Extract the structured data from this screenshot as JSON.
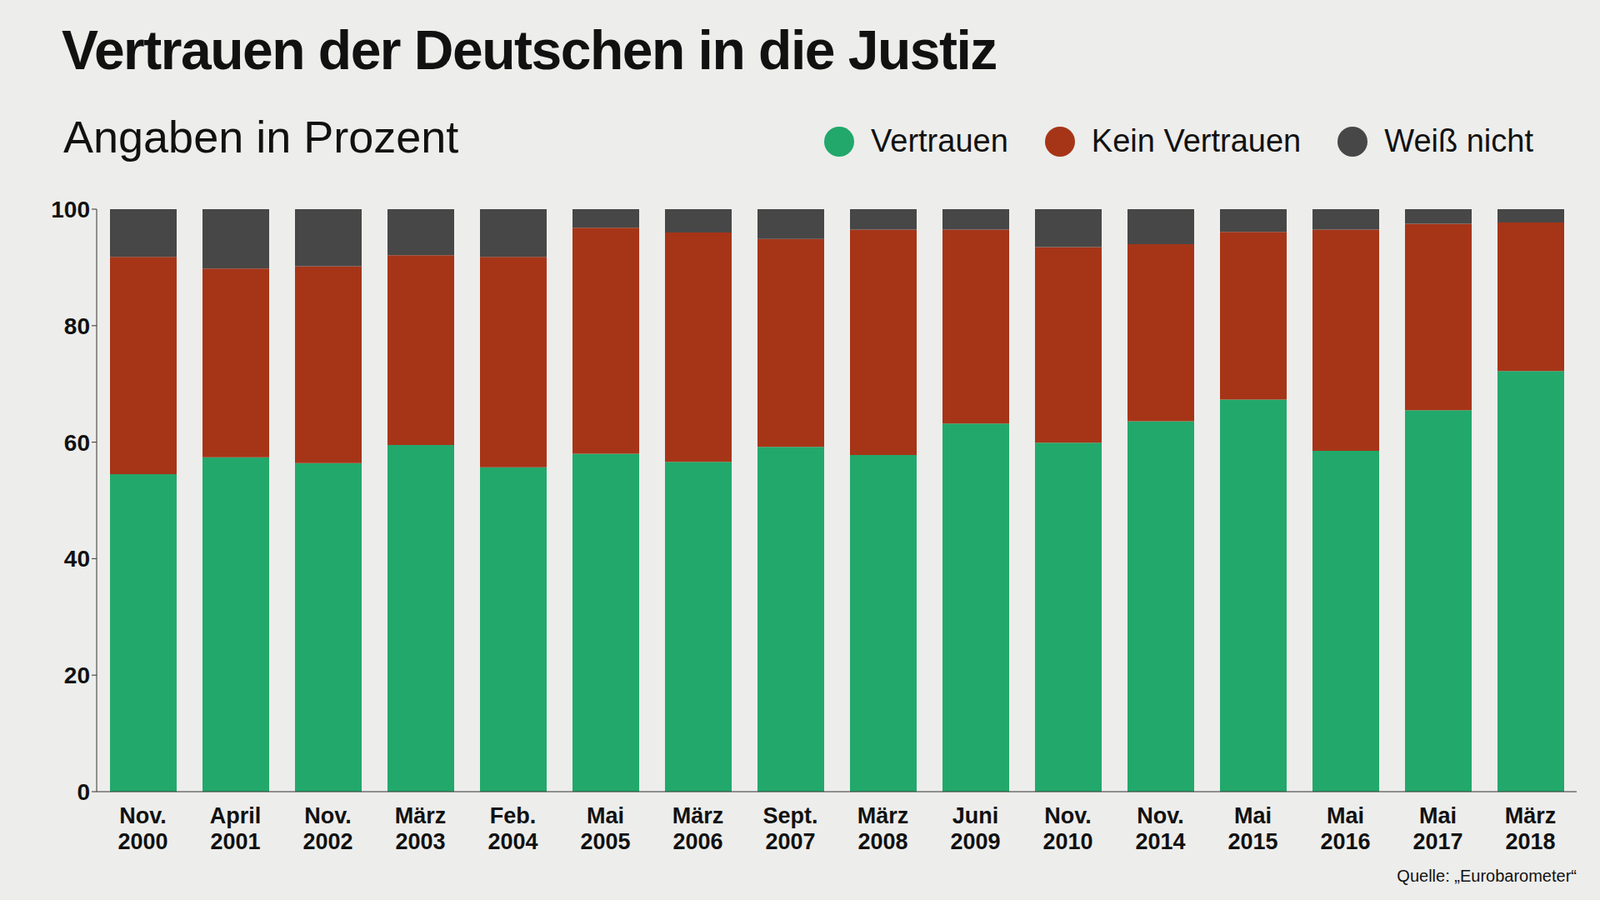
{
  "chart_data": {
    "type": "bar",
    "title": "Vertrauen der Deutschen in die Justiz",
    "subtitle": "Angaben in Prozent",
    "source": "Quelle: „Eurobarometer“",
    "stacked": true,
    "categories": [
      "Nov. 2000",
      "April 2001",
      "Nov. 2002",
      "März 2003",
      "Feb. 2004",
      "Mai 2005",
      "März 2006",
      "Sept. 2007",
      "März 2008",
      "Juni 2009",
      "Nov. 2010",
      "Nov. 2014",
      "Mai 2015",
      "Mai 2016",
      "Mai 2017",
      "März 2018"
    ],
    "series": [
      {
        "name": "Vertrauen",
        "color": "#22a86b",
        "values": [
          54.5,
          57.4,
          56.4,
          59.5,
          55.7,
          58.0,
          56.6,
          59.2,
          57.8,
          63.2,
          59.9,
          63.6,
          67.3,
          58.5,
          65.5,
          72.2
        ]
      },
      {
        "name": "Kein Vertrauen",
        "color": "#a63518",
        "values": [
          37.3,
          32.4,
          33.8,
          32.6,
          36.1,
          38.8,
          39.4,
          35.7,
          38.7,
          33.3,
          33.6,
          30.4,
          28.8,
          38.0,
          32.0,
          25.5
        ]
      },
      {
        "name": "Weiß nicht",
        "color": "#474747",
        "values": [
          8.2,
          10.2,
          9.8,
          7.9,
          8.2,
          3.2,
          4.0,
          5.1,
          3.5,
          3.5,
          6.5,
          6.0,
          3.9,
          3.5,
          2.5,
          2.3
        ]
      }
    ],
    "ylim": [
      0,
      100
    ],
    "yticks": [
      0,
      20,
      40,
      60,
      80,
      100
    ]
  }
}
